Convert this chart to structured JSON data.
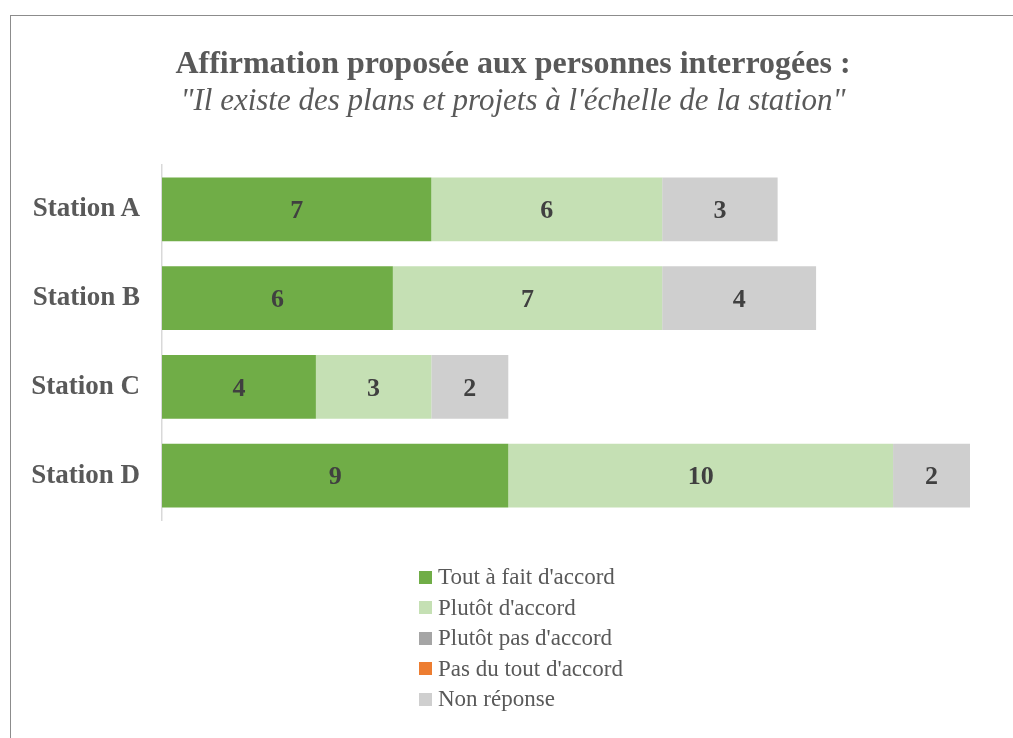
{
  "chart_data": {
    "type": "bar",
    "orientation": "horizontal",
    "stacked": true,
    "title": "Affirmation proposée aux personnes interrogées :",
    "subtitle": "\"Il existe des plans et projets à l'échelle de la station\"",
    "categories": [
      "Station A",
      "Station B",
      "Station C",
      "Station D"
    ],
    "series": [
      {
        "name": "Tout à fait d'accord",
        "color": "#70ad47",
        "values": [
          7,
          6,
          4,
          9
        ]
      },
      {
        "name": "Plutôt d'accord",
        "color": "#c5e0b4",
        "values": [
          6,
          7,
          3,
          10
        ]
      },
      {
        "name": "Plutôt pas d'accord",
        "color": "#a5a5a5",
        "values": [
          null,
          null,
          null,
          null
        ]
      },
      {
        "name": "Pas du tout d'accord",
        "color": "#ed7d31",
        "values": [
          null,
          null,
          null,
          null
        ]
      },
      {
        "name": "Non réponse",
        "color": "#cfcfcf",
        "values": [
          3,
          4,
          2,
          2
        ]
      }
    ],
    "data_labels": true,
    "legend": "bottom",
    "tick_labels": "y"
  }
}
